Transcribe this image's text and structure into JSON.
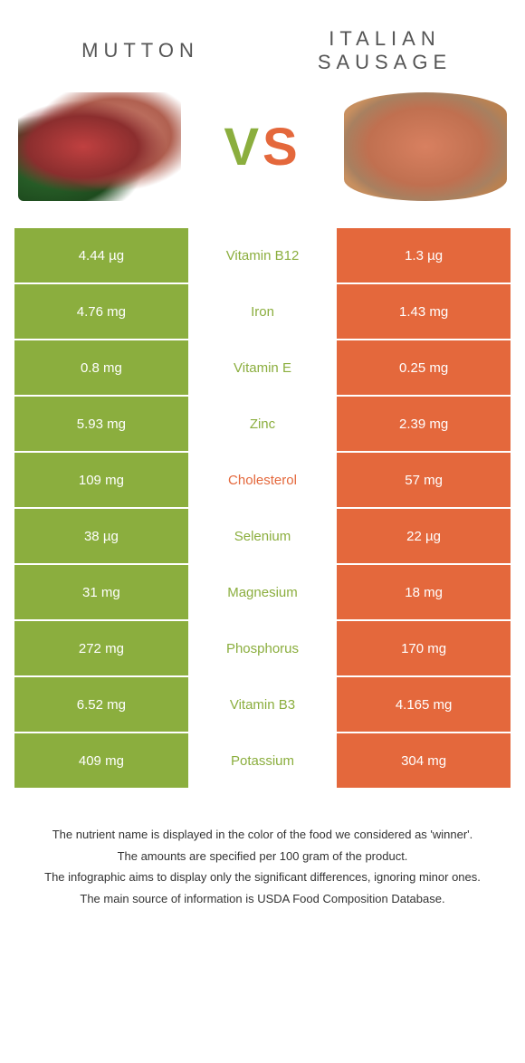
{
  "colors": {
    "left": "#8bae3e",
    "right": "#e4683c",
    "mid_bg": "#ffffff",
    "text_dark": "#555555",
    "cell_text": "#ffffff"
  },
  "header": {
    "left_title": "MUTTON",
    "right_title": "ITALIAN SAUSAGE",
    "vs": "VS"
  },
  "rows": [
    {
      "left": "4.44 µg",
      "label": "Vitamin B12",
      "right": "1.3 µg",
      "winner": "left"
    },
    {
      "left": "4.76 mg",
      "label": "Iron",
      "right": "1.43 mg",
      "winner": "left"
    },
    {
      "left": "0.8 mg",
      "label": "Vitamin E",
      "right": "0.25 mg",
      "winner": "left"
    },
    {
      "left": "5.93 mg",
      "label": "Zinc",
      "right": "2.39 mg",
      "winner": "left"
    },
    {
      "left": "109 mg",
      "label": "Cholesterol",
      "right": "57 mg",
      "winner": "right"
    },
    {
      "left": "38 µg",
      "label": "Selenium",
      "right": "22 µg",
      "winner": "left"
    },
    {
      "left": "31 mg",
      "label": "Magnesium",
      "right": "18 mg",
      "winner": "left"
    },
    {
      "left": "272 mg",
      "label": "Phosphorus",
      "right": "170 mg",
      "winner": "left"
    },
    {
      "left": "6.52 mg",
      "label": "Vitamin B3",
      "right": "4.165 mg",
      "winner": "left"
    },
    {
      "left": "409 mg",
      "label": "Potassium",
      "right": "304 mg",
      "winner": "left"
    }
  ],
  "footer": {
    "line1": "The nutrient name is displayed in the color of the food we considered as 'winner'.",
    "line2": "The amounts are specified per 100 gram of the product.",
    "line3": "The infographic aims to display only the significant differences, ignoring minor ones.",
    "line4": "The main source of information is USDA Food Composition Database."
  }
}
